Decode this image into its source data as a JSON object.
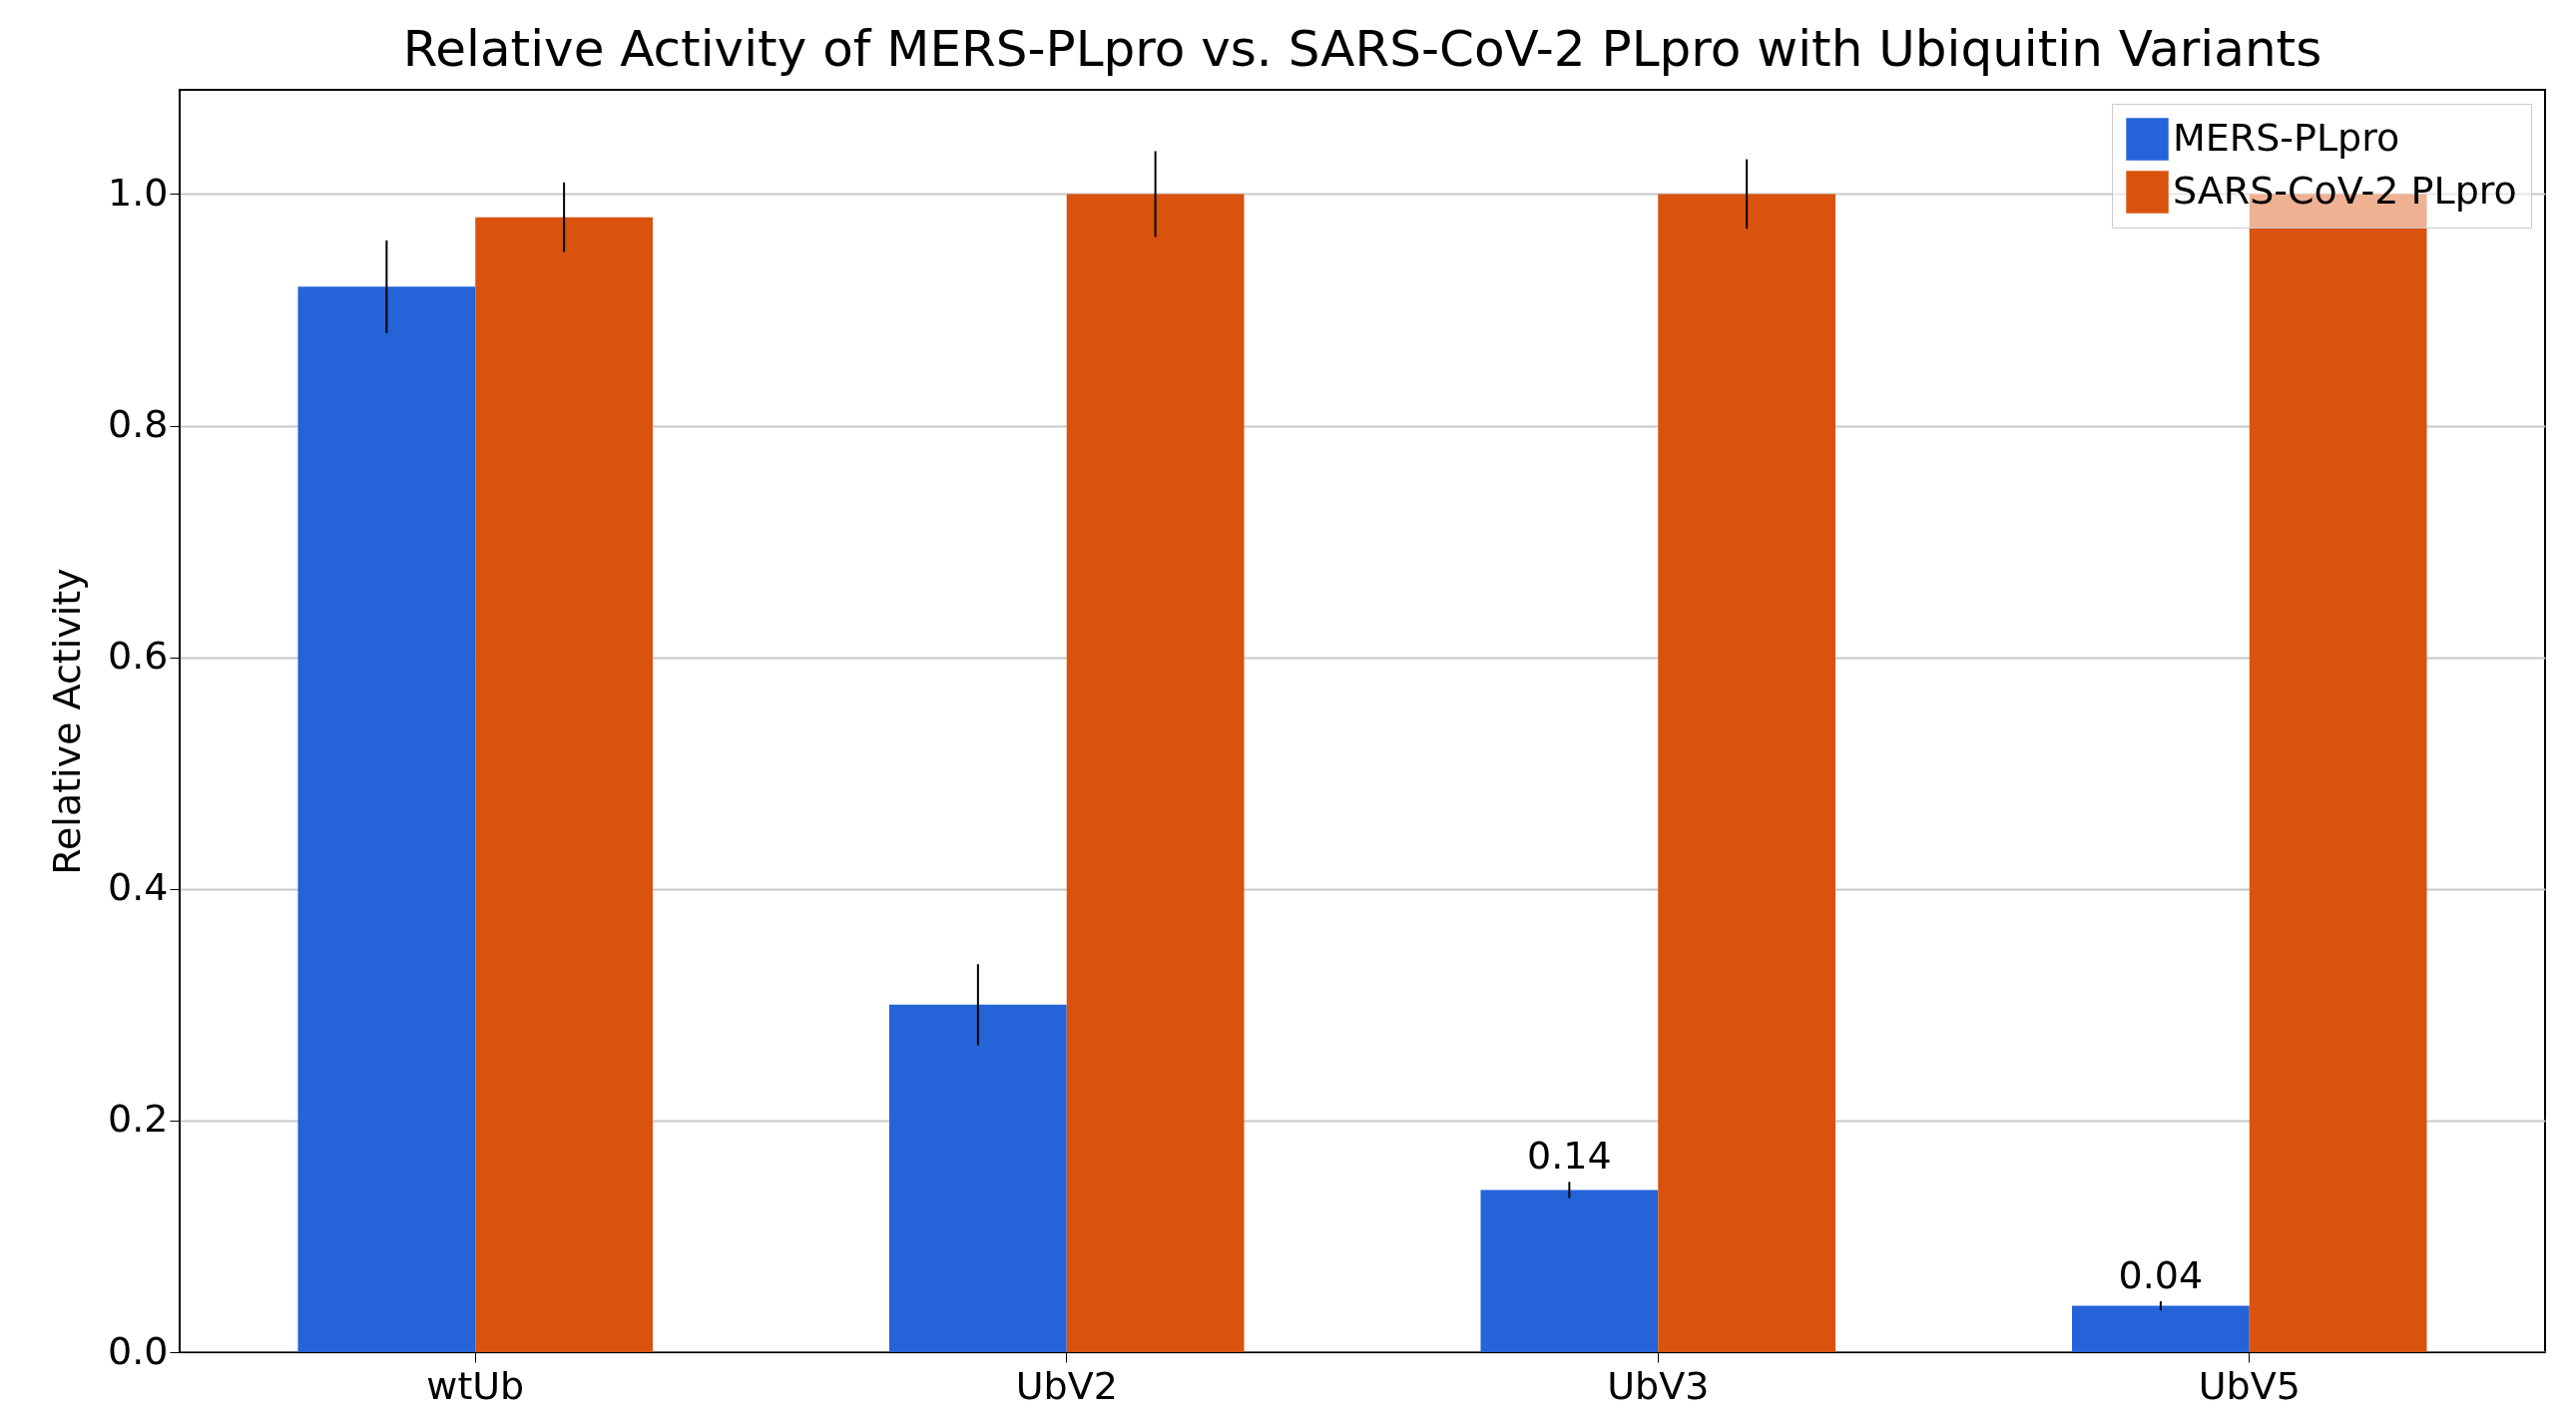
{
  "chart_data": {
    "type": "bar",
    "title": "Relative Activity of MERS-PLpro vs. SARS-CoV-2 PLpro with Ubiquitin Variants",
    "ylabel": "Relative Activity",
    "categories": [
      "wtUb",
      "UbV2",
      "UbV3",
      "UbV5"
    ],
    "series": [
      {
        "name": "MERS-PLpro",
        "color": "#2563d9",
        "values": [
          0.92,
          0.3,
          0.14,
          0.04
        ],
        "errors": [
          0.04,
          0.035,
          0.007,
          0.004
        ],
        "value_labels": [
          null,
          null,
          "0.14",
          "0.04"
        ]
      },
      {
        "name": "SARS-CoV-2 PLpro",
        "color": "#d9530e",
        "values": [
          0.98,
          1.0,
          1.0,
          1.0
        ],
        "errors": [
          0.03,
          0.037,
          0.03,
          null
        ]
      }
    ],
    "ylim": [
      0,
      1.09
    ],
    "yticks": [
      {
        "value": 0,
        "label": "0.0"
      },
      {
        "value": 0.2,
        "label": "0.2"
      },
      {
        "value": 0.4,
        "label": "0.4"
      },
      {
        "value": 0.6,
        "label": "0.6"
      },
      {
        "value": 0.8,
        "label": "0.8"
      },
      {
        "value": 1,
        "label": "1.0"
      }
    ],
    "grid": "y",
    "legend": "top right"
  }
}
